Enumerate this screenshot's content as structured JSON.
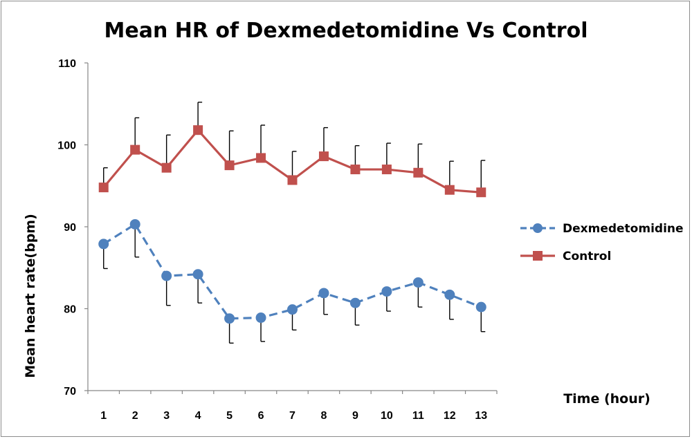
{
  "chart_data": {
    "type": "line",
    "title": "Mean HR of Dexmedetomidine Vs Control",
    "xlabel": "Time (hour)",
    "ylabel": "Mean heart rate(bpm)",
    "categories": [
      "1",
      "2",
      "3",
      "4",
      "5",
      "6",
      "7",
      "8",
      "9",
      "10",
      "11",
      "12",
      "13"
    ],
    "y_ticks": [
      "70",
      "80",
      "90",
      "100",
      "110"
    ],
    "ylim": [
      70,
      110
    ],
    "grid": false,
    "legend_position": "right",
    "series": [
      {
        "name": "Dexmedetomidine",
        "color": "#4f81bd",
        "marker": "circle",
        "line_style": "dashed",
        "values": [
          87.9,
          90.3,
          84.0,
          84.2,
          78.8,
          78.9,
          79.9,
          81.9,
          80.7,
          82.1,
          83.2,
          81.7,
          80.2
        ],
        "error_lower": [
          3.0,
          4.0,
          3.6,
          3.5,
          3.0,
          2.9,
          2.5,
          2.6,
          2.7,
          2.4,
          3.0,
          3.0,
          3.0
        ],
        "error_upper": [
          0,
          0,
          0,
          0,
          0,
          0,
          0,
          0,
          0,
          0,
          0,
          0,
          0
        ]
      },
      {
        "name": "Control",
        "color": "#c0504d",
        "marker": "square",
        "line_style": "solid",
        "values": [
          94.8,
          99.4,
          97.2,
          101.8,
          97.5,
          98.4,
          95.7,
          98.6,
          97.0,
          97.0,
          96.6,
          94.5,
          94.2
        ],
        "error_lower": [
          0,
          0,
          0,
          0,
          0,
          0,
          0,
          0,
          0,
          0,
          0,
          0,
          0
        ],
        "error_upper": [
          2.4,
          3.9,
          4.0,
          3.4,
          4.2,
          4.0,
          3.5,
          3.5,
          2.9,
          3.2,
          3.5,
          3.5,
          3.9
        ]
      }
    ]
  }
}
